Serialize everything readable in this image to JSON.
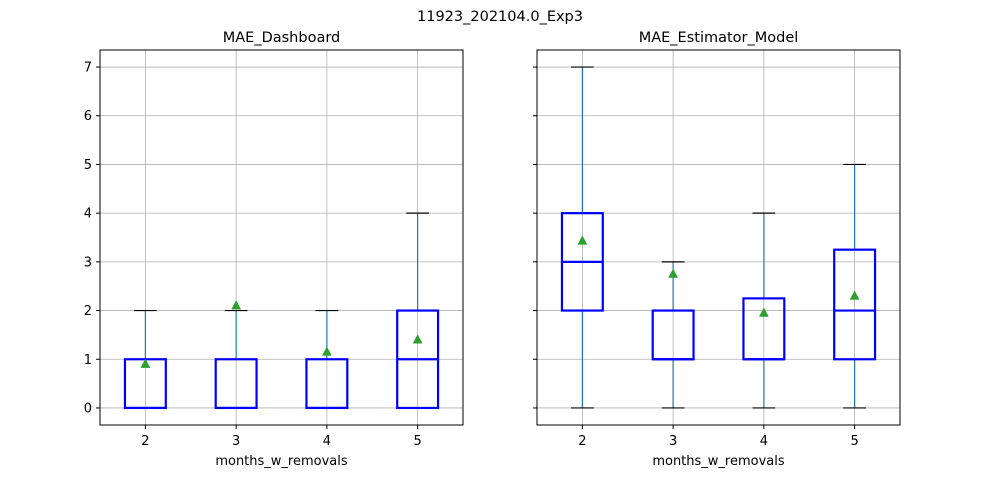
{
  "figure_title": "11923_202104.0_Exp3",
  "colors": {
    "box": "#0000ff",
    "whisker": "#1f77b4",
    "cap": "#000000",
    "median": "#0000ff",
    "mean_marker": "#2ca02c",
    "grid": "#b0b0b0",
    "axes": "#000000"
  },
  "chart_data": [
    {
      "type": "boxplot",
      "title": "MAE_Dashboard",
      "xlabel": "months_w_removals",
      "ylabel": "",
      "categories": [
        "2",
        "3",
        "4",
        "5"
      ],
      "ylim": [
        -0.35,
        7.35
      ],
      "yticks": [
        "0",
        "1",
        "2",
        "3",
        "4",
        "5",
        "6",
        "7"
      ],
      "show_yticklabels": true,
      "grid": true,
      "boxes": [
        {
          "category": "2",
          "whislo": 0,
          "q1": 0,
          "median": 0,
          "q3": 1,
          "whishi": 2,
          "mean": 0.9
        },
        {
          "category": "3",
          "whislo": 0,
          "q1": 0,
          "median": 0,
          "q3": 1,
          "whishi": 2,
          "mean": 2.1
        },
        {
          "category": "4",
          "whislo": 0,
          "q1": 0,
          "median": 0,
          "q3": 1,
          "whishi": 2,
          "mean": 1.15
        },
        {
          "category": "5",
          "whislo": 0,
          "q1": 0,
          "median": 1,
          "q3": 2,
          "whishi": 4,
          "mean": 1.4
        }
      ]
    },
    {
      "type": "boxplot",
      "title": "MAE_Estimator_Model",
      "xlabel": "months_w_removals",
      "ylabel": "",
      "categories": [
        "2",
        "3",
        "4",
        "5"
      ],
      "ylim": [
        -0.35,
        7.35
      ],
      "yticks": [
        "0",
        "1",
        "2",
        "3",
        "4",
        "5",
        "6",
        "7"
      ],
      "show_yticklabels": false,
      "grid": true,
      "boxes": [
        {
          "category": "2",
          "whislo": 0,
          "q1": 2,
          "median": 3,
          "q3": 4,
          "whishi": 7,
          "mean": 3.43
        },
        {
          "category": "3",
          "whislo": 0,
          "q1": 1,
          "median": 1,
          "q3": 2,
          "whishi": 3,
          "mean": 2.75
        },
        {
          "category": "4",
          "whislo": 0,
          "q1": 1,
          "median": 1,
          "q3": 2.25,
          "whishi": 4,
          "mean": 1.95
        },
        {
          "category": "5",
          "whislo": 0,
          "q1": 1,
          "median": 2,
          "q3": 3.25,
          "whishi": 5,
          "mean": 2.3
        }
      ]
    }
  ]
}
